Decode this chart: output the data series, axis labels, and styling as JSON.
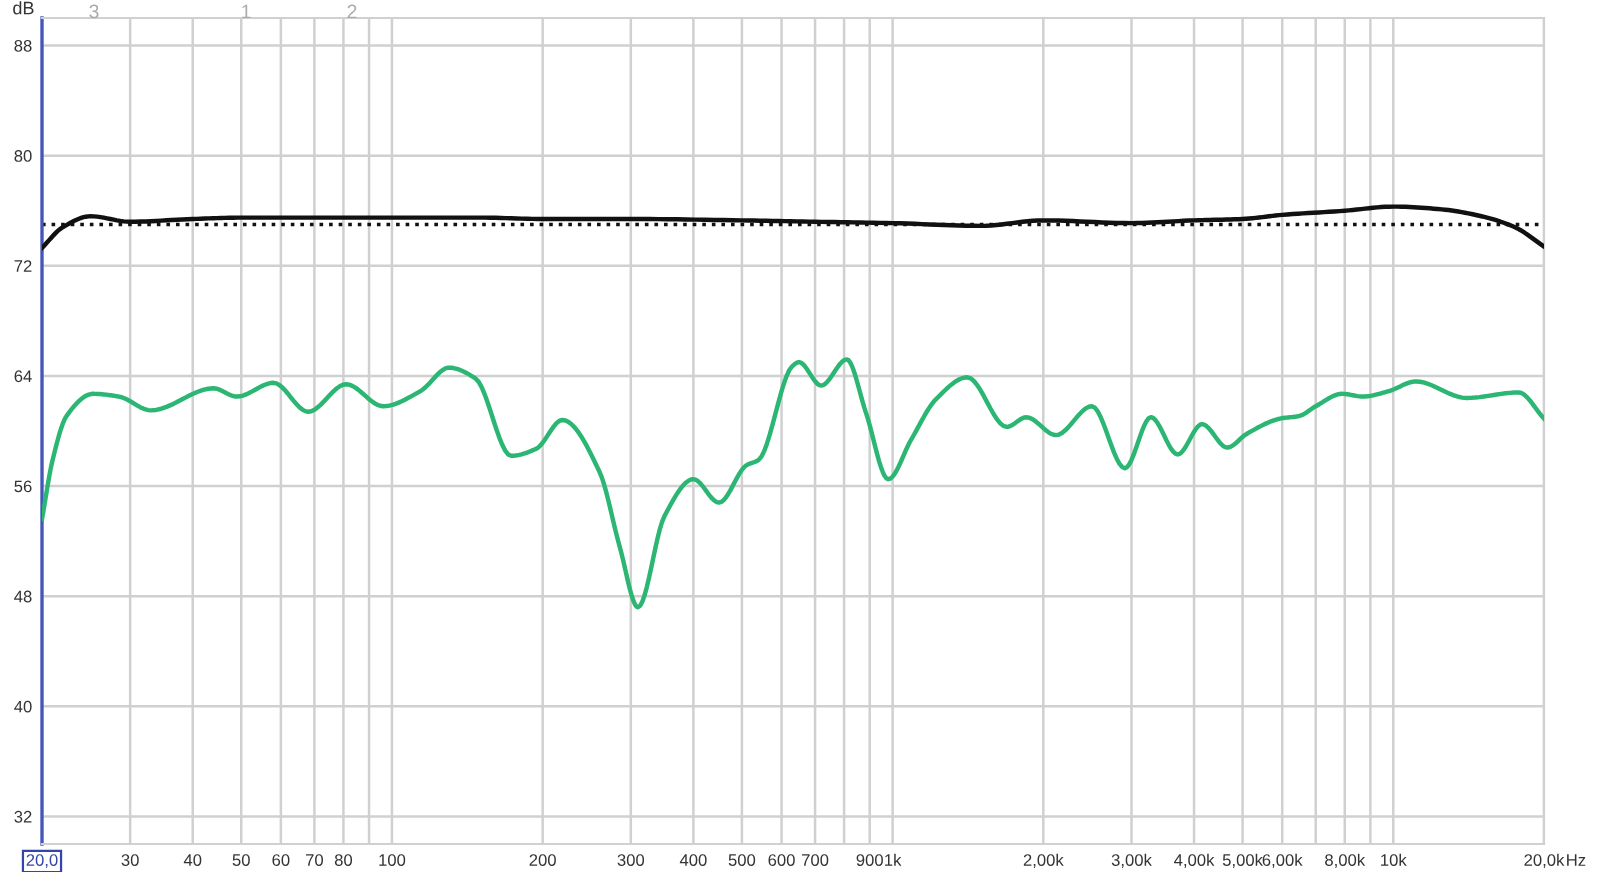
{
  "chart_data": {
    "type": "line",
    "ylabel": "dB",
    "series": [
      {
        "color": "#111111",
        "x": [
          20,
          22,
          25,
          30,
          40,
          50,
          70,
          100,
          150,
          200,
          300,
          500,
          700,
          1000,
          1500,
          2000,
          3000,
          4000,
          5000,
          6000,
          8000,
          10000,
          12500,
          15000,
          17500,
          20000
        ],
        "values": [
          73.3,
          74.8,
          75.6,
          75.2,
          75.4,
          75.5,
          75.5,
          75.5,
          75.5,
          75.4,
          75.4,
          75.3,
          75.2,
          75.1,
          74.9,
          75.3,
          75.1,
          75.3,
          75.4,
          75.7,
          76.0,
          76.3,
          76.1,
          75.6,
          74.8,
          73.4
        ]
      },
      {
        "color": "#2bb673",
        "x": [
          20,
          21,
          22.4,
          25.3,
          28.5,
          33,
          44,
          49,
          58,
          68,
          81,
          96,
          114,
          130,
          147,
          173,
          194,
          219,
          260,
          285,
          310,
          350,
          400,
          450,
          510,
          540,
          630,
          650,
          720,
          810,
          885,
          980,
          1090,
          1220,
          1410,
          1690,
          1850,
          2120,
          2500,
          2910,
          3280,
          3710,
          4150,
          4660,
          5100,
          5940,
          6500,
          7000,
          7900,
          8700,
          9800,
          11100,
          14000,
          17800,
          20000
        ],
        "values": [
          53.6,
          57.9,
          61.1,
          62.7,
          62.5,
          61.5,
          63.1,
          62.5,
          63.5,
          61.4,
          63.4,
          61.8,
          62.9,
          64.6,
          63.8,
          58.2,
          58.7,
          60.8,
          57.0,
          51.6,
          47.2,
          53.8,
          56.5,
          54.8,
          57.5,
          57.9,
          64.7,
          65.0,
          63.3,
          65.2,
          61.3,
          56.5,
          59.4,
          62.3,
          63.9,
          60.3,
          61.0,
          59.7,
          61.8,
          57.3,
          61.0,
          58.3,
          60.5,
          58.8,
          59.8,
          60.9,
          61.1,
          61.8,
          62.7,
          62.5,
          62.9,
          63.6,
          62.4,
          62.8,
          60.9
        ]
      }
    ],
    "ref_lines": [
      {
        "axis": "y",
        "value": 75,
        "color": "#111111",
        "line_style": "dotted"
      }
    ],
    "annotations": [
      "3",
      "1",
      "2"
    ],
    "xlabel": "Hz",
    "log": "x",
    "xlim": [
      20,
      20000
    ],
    "xticks": [
      {
        "value": 20,
        "label": "20,0"
      },
      30,
      40,
      50,
      60,
      70,
      80,
      {
        "value": 90,
        "label": null
      },
      100,
      200,
      300,
      400,
      500,
      600,
      700,
      {
        "value": 800,
        "label": null
      },
      900,
      {
        "value": 1000,
        "label": "1k"
      },
      {
        "value": 2000,
        "label": "2,00k"
      },
      {
        "value": 3000,
        "label": "3,00k"
      },
      {
        "value": 4000,
        "label": "4,00k"
      },
      {
        "value": 5000,
        "label": "5,00k"
      },
      {
        "value": 6000,
        "label": "6,00k"
      },
      {
        "value": 7000,
        "label": null
      },
      {
        "value": 8000,
        "label": "8,00k"
      },
      {
        "value": 9000,
        "label": null
      },
      {
        "value": 10000,
        "label": "10k"
      },
      {
        "value": 20000,
        "label": "20,0k"
      }
    ],
    "ylim": [
      30,
      90
    ],
    "yticks": [
      32,
      40,
      48,
      56,
      64,
      72,
      80,
      88
    ],
    "grid": true,
    "marker": "none",
    "line_style": "solid"
  }
}
